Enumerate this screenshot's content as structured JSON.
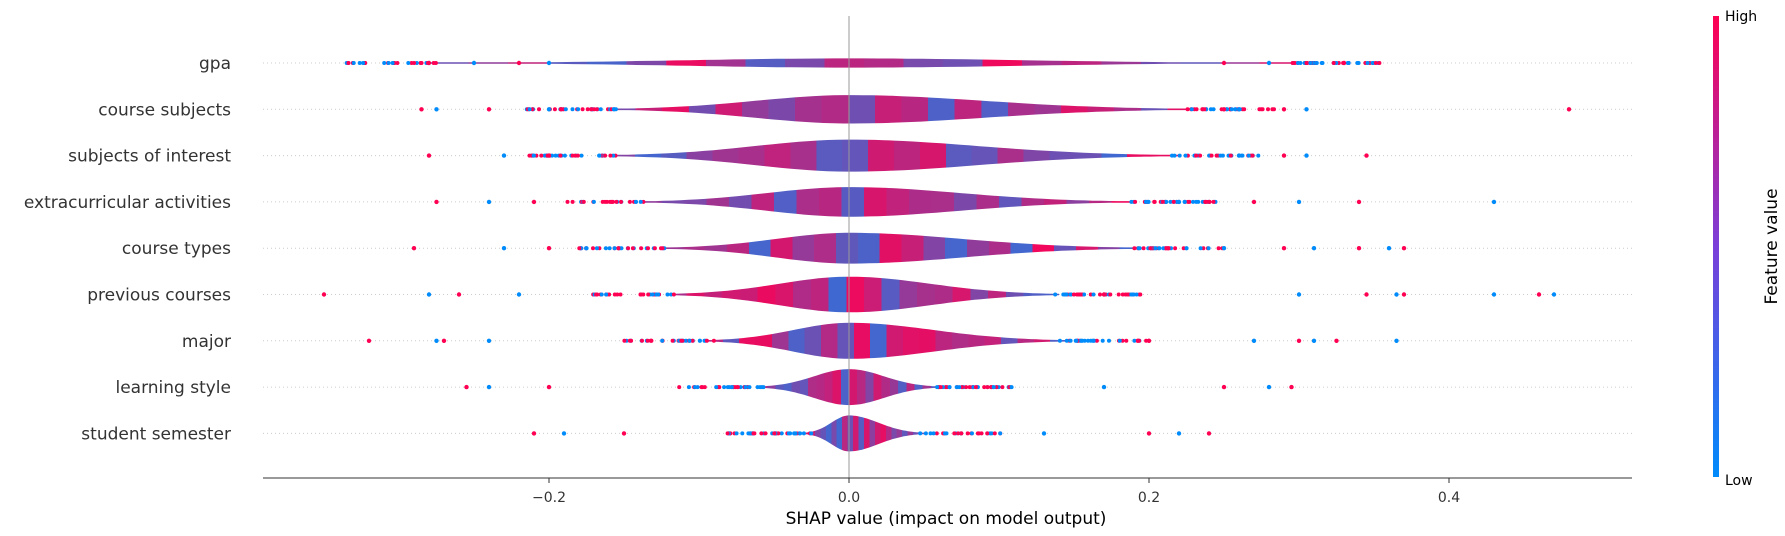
{
  "chart_data": {
    "type": "violin",
    "xlabel": "SHAP value (impact on model output)",
    "ylabel": "",
    "xlim": [
      -0.39,
      0.52
    ],
    "xticks": [
      -0.2,
      0.0,
      0.2,
      0.4
    ],
    "xtick_labels": [
      "−0.2",
      "0.0",
      "0.2",
      "0.4"
    ],
    "grid": false,
    "colorbar": {
      "label": "Feature value",
      "high_label": "High",
      "low_label": "Low",
      "high_color": "#ff0052",
      "low_color": "#008bfb"
    },
    "features": [
      {
        "name": "gpa",
        "body_range": [
          -0.28,
          0.3
        ],
        "max_width": 0.02,
        "peak_at": 0.0,
        "outliers": [
          -0.28,
          -0.25,
          -0.22,
          -0.2,
          0.25,
          0.28,
          0.33
        ]
      },
      {
        "name": "course subjects",
        "body_range": [
          -0.16,
          0.23
        ],
        "max_width": 0.34,
        "peak_at": 0.0,
        "outliers": [
          -0.285,
          -0.275,
          -0.24,
          -0.2,
          0.25,
          0.26,
          0.29,
          0.305,
          0.48
        ]
      },
      {
        "name": "subjects of interest",
        "body_range": [
          -0.16,
          0.22
        ],
        "max_width": 0.4,
        "peak_at": 0.0,
        "outliers": [
          -0.28,
          -0.23,
          -0.2,
          0.26,
          0.29,
          0.305,
          0.345
        ]
      },
      {
        "name": "extracurricular activities",
        "body_range": [
          -0.14,
          0.19
        ],
        "max_width": 0.36,
        "peak_at": 0.0,
        "outliers": [
          -0.275,
          -0.24,
          -0.21,
          0.22,
          0.27,
          0.3,
          0.34,
          0.43
        ]
      },
      {
        "name": "course types",
        "body_range": [
          -0.125,
          0.195
        ],
        "max_width": 0.38,
        "peak_at": 0.0,
        "outliers": [
          -0.29,
          -0.23,
          -0.2,
          0.25,
          0.29,
          0.31,
          0.34,
          0.36,
          0.37
        ]
      },
      {
        "name": "previous courses",
        "body_range": [
          -0.12,
          0.14
        ],
        "max_width": 0.46,
        "peak_at": 0.0,
        "outliers": [
          -0.35,
          -0.28,
          -0.26,
          -0.22,
          0.17,
          0.3,
          0.345,
          0.365,
          0.37,
          0.43,
          0.46,
          0.47
        ]
      },
      {
        "name": "major",
        "body_range": [
          -0.095,
          0.145
        ],
        "max_width": 0.54,
        "peak_at": 0.0,
        "outliers": [
          -0.32,
          -0.275,
          -0.27,
          -0.24,
          0.2,
          0.27,
          0.3,
          0.31,
          0.325,
          0.365
        ]
      },
      {
        "name": "learning style",
        "body_range": [
          -0.06,
          0.06
        ],
        "max_width": 0.8,
        "peak_at": 0.0,
        "outliers": [
          -0.255,
          -0.24,
          -0.2,
          0.17,
          0.25,
          0.28,
          0.295
        ]
      },
      {
        "name": "student semester",
        "body_range": [
          -0.03,
          0.05
        ],
        "max_width": 0.8,
        "peak_at": 0.0,
        "outliers": [
          -0.21,
          -0.19,
          -0.15,
          0.13,
          0.2,
          0.22,
          0.24
        ]
      }
    ]
  }
}
